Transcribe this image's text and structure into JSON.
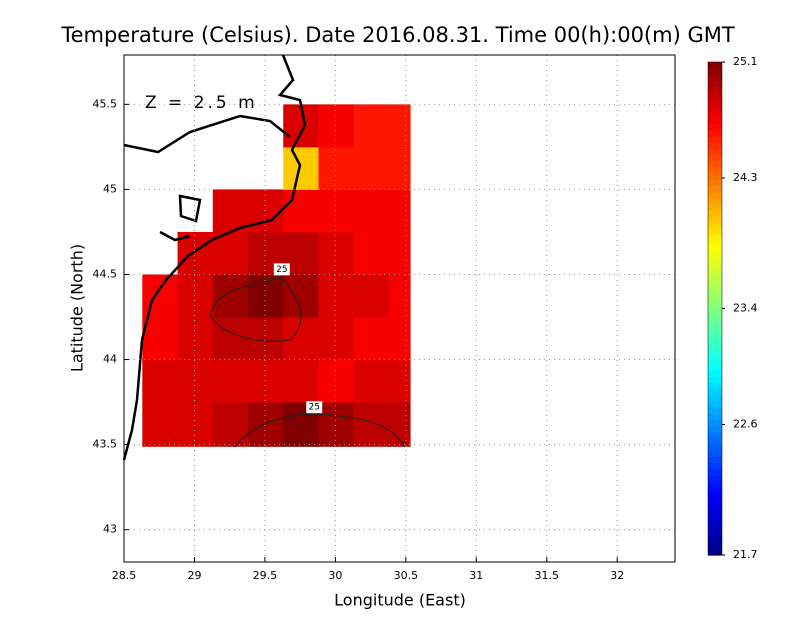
{
  "chart_data": {
    "type": "heatmap",
    "title": "Temperature (Celsius). Date 2016.08.31. Time 00(h):00(m) GMT",
    "x_label": "Longitude (East)",
    "y_label": "Latitude (North)",
    "annotation": "Z = 2.5 m",
    "xlim": [
      28.5,
      32.41
    ],
    "ylim": [
      42.81,
      45.79
    ],
    "xticks": [
      28.5,
      29,
      29.5,
      30,
      30.5,
      31,
      31.5,
      32
    ],
    "yticks": [
      43,
      43.5,
      44,
      44.5,
      45,
      45.5
    ],
    "grid": true,
    "clim": [
      21.7,
      25.1
    ],
    "cticks": [
      21.7,
      22.6,
      23.4,
      24.3,
      25.1
    ],
    "field": {
      "x_edges": [
        28.63,
        28.88,
        29.13,
        29.38,
        29.63,
        29.88,
        30.13,
        30.38,
        30.53
      ],
      "y_edges": [
        43.49,
        43.75,
        44,
        44.25,
        44.5,
        44.75,
        45,
        45.25,
        45.5
      ],
      "values": [
        [
          24.8,
          24.8,
          24.9,
          25.0,
          25.1,
          25.0,
          24.9,
          24.9
        ],
        [
          24.8,
          24.8,
          24.8,
          24.8,
          24.8,
          24.7,
          24.8,
          24.8
        ],
        [
          24.7,
          24.8,
          24.9,
          24.9,
          24.8,
          24.8,
          24.7,
          24.7
        ],
        [
          24.7,
          24.8,
          25.0,
          25.1,
          25.0,
          24.8,
          24.8,
          24.7
        ],
        [
          null,
          24.8,
          24.8,
          24.9,
          24.9,
          24.8,
          24.7,
          24.7
        ],
        [
          null,
          null,
          24.8,
          24.8,
          24.7,
          24.7,
          24.7,
          24.7
        ],
        [
          null,
          null,
          null,
          null,
          24.0,
          24.6,
          24.6,
          24.6
        ],
        [
          null,
          null,
          null,
          null,
          24.8,
          24.7,
          24.6,
          24.6
        ]
      ]
    },
    "contour_labels": [
      {
        "x": 29.62,
        "y": 44.53,
        "value": 25
      },
      {
        "x": 29.85,
        "y": 43.72,
        "value": 25
      }
    ]
  }
}
